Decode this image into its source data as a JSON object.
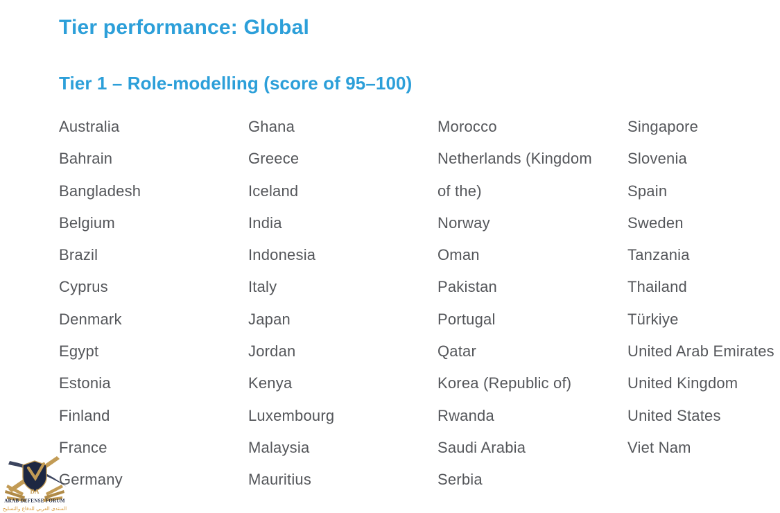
{
  "page": {
    "title": "Tier performance: Global",
    "section_heading": "Tier 1 – Role-modelling (score of 95–100)"
  },
  "colors": {
    "heading_blue": "#2C9FD9",
    "body_gray": "#54565A",
    "watermark_navy": "#1D2742",
    "watermark_gold": "#C29B55",
    "watermark_arabic_gold": "#D89A3C"
  },
  "tier1_countries": {
    "column_1": [
      "Australia",
      "Bahrain",
      "Bangladesh",
      "Belgium",
      "Brazil",
      "Cyprus",
      "Denmark",
      "Egypt",
      "Estonia",
      "Finland",
      "France",
      "Germany"
    ],
    "column_2": [
      "Ghana",
      "Greece",
      "Iceland",
      "India",
      "Indonesia",
      "Italy",
      "Japan",
      "Jordan",
      "Kenya",
      "Luxembourg",
      "Malaysia",
      "Mauritius"
    ],
    "column_3": [
      "Morocco",
      "Netherlands (Kingdom\nof the)",
      "Norway",
      "Oman",
      "Pakistan",
      "Portugal",
      "Qatar",
      "Korea (Republic of)",
      "Rwanda",
      "Saudi Arabia",
      "Serbia"
    ],
    "column_4": [
      "Singapore",
      "Slovenia",
      "Spain",
      "Sweden",
      "Tanzania",
      "Thailand",
      "Türkiye",
      "United Arab Emirates",
      "United Kingdom",
      "United States",
      "Viet Nam"
    ]
  },
  "watermark": {
    "monogram": "DA",
    "name_en": "ARAB DEFENSE FORUM",
    "name_ar": "المنتدى العربي للدفاع والتسليح"
  }
}
